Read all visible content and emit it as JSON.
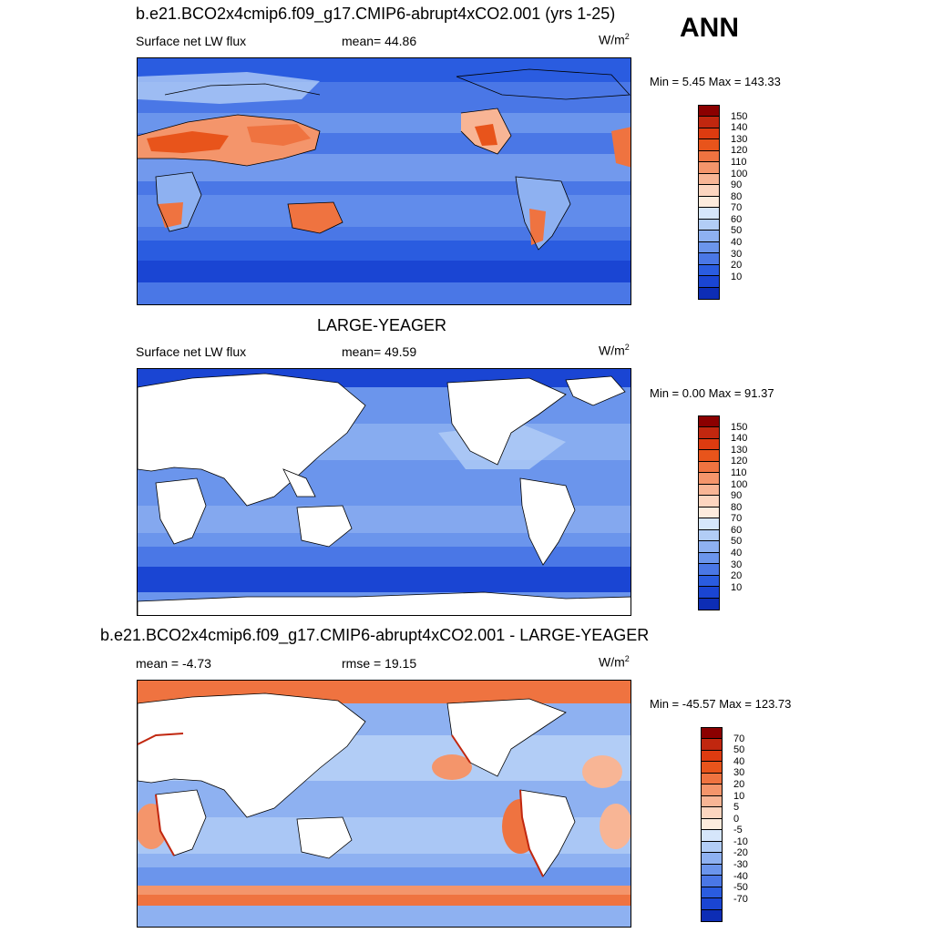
{
  "season": "ANN",
  "panels": [
    {
      "title": "b.e21.BCO2x4cmip6.f09_g17.CMIP6-abrupt4xCO2.001 (yrs 1-25)",
      "left": "Surface net LW flux",
      "middle": "mean=  44.86",
      "units": "W/m",
      "units_sup": "2",
      "minmax": "Min =   5.45 Max = 143.33",
      "colorbar": {
        "labels": [
          "150",
          "140",
          "130",
          "120",
          "110",
          "100",
          "90",
          "80",
          "70",
          "60",
          "50",
          "40",
          "30",
          "20",
          "10"
        ],
        "colors": [
          "#8b0000",
          "#c1270f",
          "#dd3b10",
          "#e8541b",
          "#ef7340",
          "#f4956b",
          "#f8b595",
          "#fcd5bf",
          "#fcebdd",
          "#d6e6fb",
          "#b2cdf6",
          "#8eb1f1",
          "#6b95ec",
          "#4a77e6",
          "#2a5ce0",
          "#1a45d3",
          "#0d2db5"
        ]
      },
      "map": "model"
    },
    {
      "title": "LARGE-YEAGER",
      "left": "Surface net LW flux",
      "middle": "mean=  49.59",
      "units": "W/m",
      "units_sup": "2",
      "minmax": "Min =   0.00 Max =  91.37",
      "colorbar": {
        "labels": [
          "150",
          "140",
          "130",
          "120",
          "110",
          "100",
          "90",
          "80",
          "70",
          "60",
          "50",
          "40",
          "30",
          "20",
          "10"
        ],
        "colors": [
          "#8b0000",
          "#c1270f",
          "#dd3b10",
          "#e8541b",
          "#ef7340",
          "#f4956b",
          "#f8b595",
          "#fcd5bf",
          "#fcebdd",
          "#d6e6fb",
          "#b2cdf6",
          "#8eb1f1",
          "#6b95ec",
          "#4a77e6",
          "#2a5ce0",
          "#1a45d3",
          "#0d2db5"
        ]
      },
      "map": "obs"
    },
    {
      "title": "b.e21.BCO2x4cmip6.f09_g17.CMIP6-abrupt4xCO2.001 - LARGE-YEAGER",
      "left": "mean =  -4.73",
      "middle": "rmse =  19.15",
      "units": "W/m",
      "units_sup": "2",
      "minmax": "Min = -45.57 Max = 123.73",
      "colorbar": {
        "labels": [
          "70",
          "50",
          "40",
          "30",
          "20",
          "10",
          "5",
          "0",
          "-5",
          "-10",
          "-20",
          "-30",
          "-40",
          "-50",
          "-70"
        ],
        "colors": [
          "#8b0000",
          "#c1270f",
          "#dd3b10",
          "#e8541b",
          "#ef7340",
          "#f4956b",
          "#f8b595",
          "#fcd5bf",
          "#fcebdd",
          "#d6e6fb",
          "#b2cdf6",
          "#8eb1f1",
          "#6b95ec",
          "#4a77e6",
          "#2a5ce0",
          "#1a45d3",
          "#0d2db5"
        ]
      },
      "map": "diff"
    }
  ]
}
